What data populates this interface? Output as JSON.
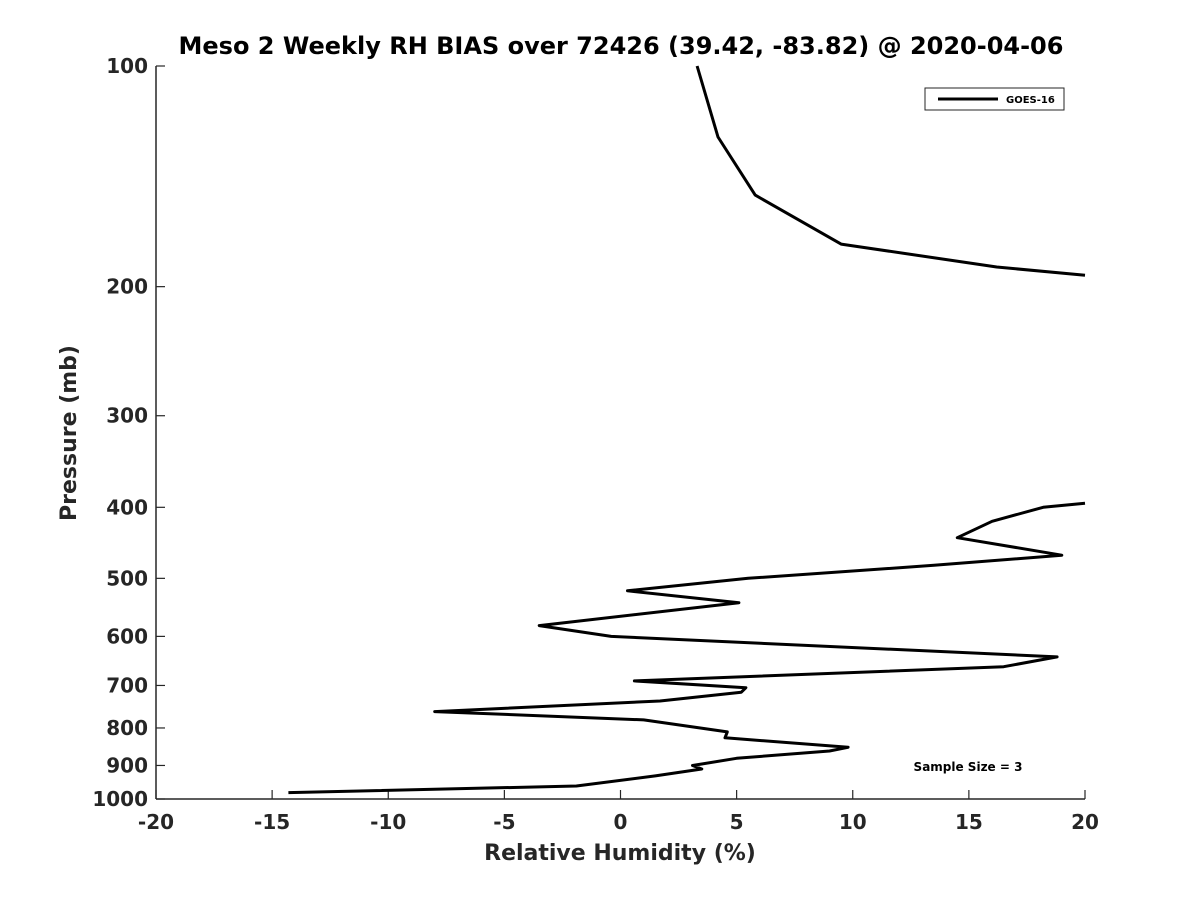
{
  "chart_data": {
    "type": "line",
    "title": "Meso 2 Weekly RH BIAS over 72426 (39.42, -83.82) @ 2020-04-06",
    "xlabel": "Relative Humidity (%)",
    "ylabel": "Pressure (mb)",
    "xlim": [
      -20,
      20
    ],
    "ylim": [
      100,
      1000
    ],
    "yscale": "log",
    "yreversed": true,
    "grid": false,
    "legend_position": "top-right",
    "x_ticks": [
      "-20",
      "-15",
      "-10",
      "-5",
      "0",
      "5",
      "10",
      "15",
      "20"
    ],
    "y_ticks": [
      "100",
      "200",
      "300",
      "400",
      "500",
      "600",
      "700",
      "800",
      "900",
      "1000"
    ],
    "annotation": "Sample Size = 3",
    "series_color": "#000000",
    "series": [
      {
        "name": "GOES-16",
        "segments": [
          {
            "x": [
              3.3,
              4.2,
              5.8,
              9.5,
              16.2,
              20.0
            ],
            "y": [
              100,
              125,
              150,
              175,
              188,
              193
            ]
          },
          {
            "x": [
              20.0,
              18.2,
              16.0,
              14.5,
              19.0,
              13.5,
              5.5,
              0.3,
              5.1,
              -3.5,
              -0.4,
              18.8,
              16.5,
              0.6,
              5.4,
              5.2,
              1.7,
              -8.0,
              1.0,
              4.6,
              4.5,
              9.8,
              9.0,
              5.0,
              3.1,
              3.5,
              1.5,
              -1.9,
              -14.3
            ],
            "y": [
              395,
              400,
              418,
              440,
              465,
              480,
              500,
              520,
              540,
              580,
              600,
              640,
              660,
              690,
              705,
              715,
              735,
              760,
              780,
              810,
              825,
              850,
              860,
              880,
              900,
              910,
              930,
              960,
              980
            ]
          }
        ]
      }
    ]
  }
}
